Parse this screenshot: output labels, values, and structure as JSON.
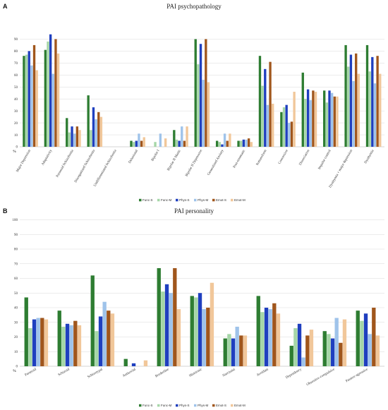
{
  "colors": {
    "Func-S": "#2e7d32",
    "Func-M": "#a5d6a7",
    "Phys-S": "#1f3fbf",
    "Phys-M": "#9fc3ea",
    "Emot-S": "#a0561c",
    "Emot-M": "#f1c79a"
  },
  "chart_data": [
    {
      "panel": "A",
      "type": "bar",
      "title": "PAI psychopathology",
      "y_unit_label": "%",
      "ylim": [
        0,
        100
      ],
      "yticks": [
        0,
        10,
        20,
        30,
        40,
        50,
        60,
        70,
        80,
        90
      ],
      "grid": true,
      "legend_position": "bottom",
      "categories": [
        "Major Depression",
        "Adaptativity",
        "Paranoid Schizofrenia",
        "Disorganized Schizofrenia",
        "Undifferentiated Schizofrenia",
        "Delusional",
        "Bipolar I",
        "Bipolar II Manic",
        "Bipolar II Depressive",
        "Generalized Anxiety",
        "Post-traumatic",
        "Somatoform",
        "Conversive",
        "Dissociative",
        "Impulse control",
        "Dysthymia + major depression",
        "Dysthymia"
      ],
      "series": [
        {
          "name": "Func-S",
          "values": [
            76,
            81,
            24,
            43,
            0,
            5,
            0,
            14,
            90,
            5,
            5,
            76,
            29,
            62,
            47,
            85,
            85
          ]
        },
        {
          "name": "Func-M",
          "values": [
            77,
            88,
            12,
            14,
            0,
            4,
            4,
            6,
            69,
            4,
            5,
            51,
            33,
            40,
            37,
            67,
            63
          ]
        },
        {
          "name": "Phys-S",
          "values": [
            80,
            94,
            17,
            33,
            0,
            5,
            0,
            5,
            86,
            2,
            6,
            65,
            35,
            48,
            47,
            77,
            75
          ]
        },
        {
          "name": "Phys-M",
          "values": [
            68,
            61,
            11,
            23,
            0,
            11,
            11,
            17,
            56,
            11,
            6,
            35,
            20,
            39,
            45,
            55,
            53
          ]
        },
        {
          "name": "Emot-S",
          "values": [
            85,
            90,
            17,
            29,
            0,
            5,
            0,
            5,
            90,
            5,
            7,
            71,
            21,
            47,
            42,
            78,
            76
          ]
        },
        {
          "name": "Emot-M",
          "values": [
            64,
            78,
            14,
            25,
            0,
            8,
            7,
            17,
            54,
            11,
            4,
            36,
            46,
            46,
            42,
            61,
            61
          ]
        }
      ],
      "legend": [
        "Func-S",
        "Func-M",
        "Phys-S",
        "Phys-M",
        "Emot-S",
        "Emot-M"
      ]
    },
    {
      "panel": "B",
      "type": "bar",
      "title": "PAI personality",
      "y_unit_label": "%",
      "ylim": [
        0,
        100
      ],
      "yticks": [
        0,
        10,
        20,
        30,
        40,
        50,
        60,
        70,
        80,
        90,
        100
      ],
      "grid": true,
      "legend_position": "bottom",
      "categories": [
        "Paranoid",
        "Schizoid",
        "Schizotypal",
        "Antisocial",
        "Borderline",
        "Histrionic",
        "Narcissist",
        "Avoidant",
        "Dependency",
        "Obsessive-compulsive",
        "Passive-agressive"
      ],
      "series": [
        {
          "name": "Func-S",
          "values": [
            47,
            38,
            62,
            5,
            67,
            48,
            19,
            48,
            14,
            24,
            38
          ]
        },
        {
          "name": "Func-M",
          "values": [
            26,
            27,
            24,
            0,
            51,
            47,
            22,
            37,
            26,
            22,
            31
          ]
        },
        {
          "name": "Phys-S",
          "values": [
            32,
            29,
            34,
            2,
            56,
            50,
            19,
            40,
            29,
            19,
            36
          ]
        },
        {
          "name": "Phys-M",
          "values": [
            33,
            28,
            44,
            0,
            50,
            39,
            27,
            39,
            6,
            33,
            22
          ]
        },
        {
          "name": "Emot-S",
          "values": [
            33,
            31,
            38,
            0,
            67,
            40,
            21,
            43,
            21,
            16,
            40
          ]
        },
        {
          "name": "Emot-M",
          "values": [
            32,
            28,
            36,
            4,
            39,
            57,
            21,
            36,
            25,
            32,
            21
          ]
        }
      ],
      "legend": [
        "Func-S",
        "Func-M",
        "Phys-S",
        "Phys-M",
        "Emot-S",
        "Emot-M"
      ]
    }
  ]
}
